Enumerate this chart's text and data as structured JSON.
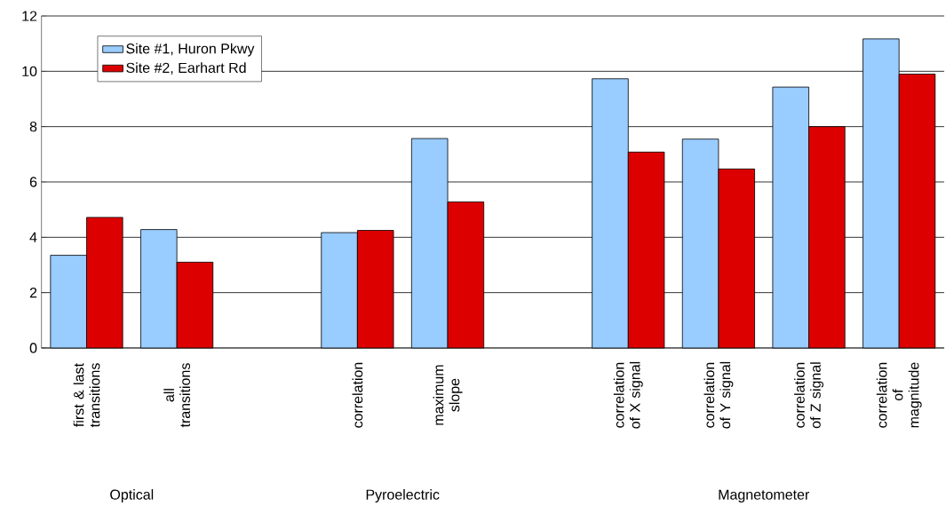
{
  "chart_data": {
    "type": "bar",
    "categories": [
      "first & last transitions",
      "all transitions",
      null,
      "correlation",
      "maximum slope",
      null,
      "correlation of X signal",
      "correlation of Y signal",
      "correlation of Z signal",
      "correlation of magnitude"
    ],
    "series": [
      {
        "name": "Site #1, Huron Pkwy",
        "color": "#99ccff",
        "values": [
          3.35,
          4.28,
          null,
          4.17,
          7.57,
          null,
          9.73,
          7.55,
          9.43,
          11.17
        ]
      },
      {
        "name": "Site #2, Earhart Rd",
        "color": "#dd0000",
        "values": [
          4.72,
          3.1,
          null,
          4.25,
          5.28,
          null,
          7.08,
          6.47,
          8.0,
          9.9
        ]
      }
    ],
    "annotations": [
      "Optical",
      "Pyroelectric",
      "Magnetometer"
    ],
    "ylim": [
      0,
      12
    ],
    "yticks": [
      0,
      2,
      4,
      6,
      8,
      10,
      12
    ],
    "grid": "y",
    "legend": "top left"
  }
}
